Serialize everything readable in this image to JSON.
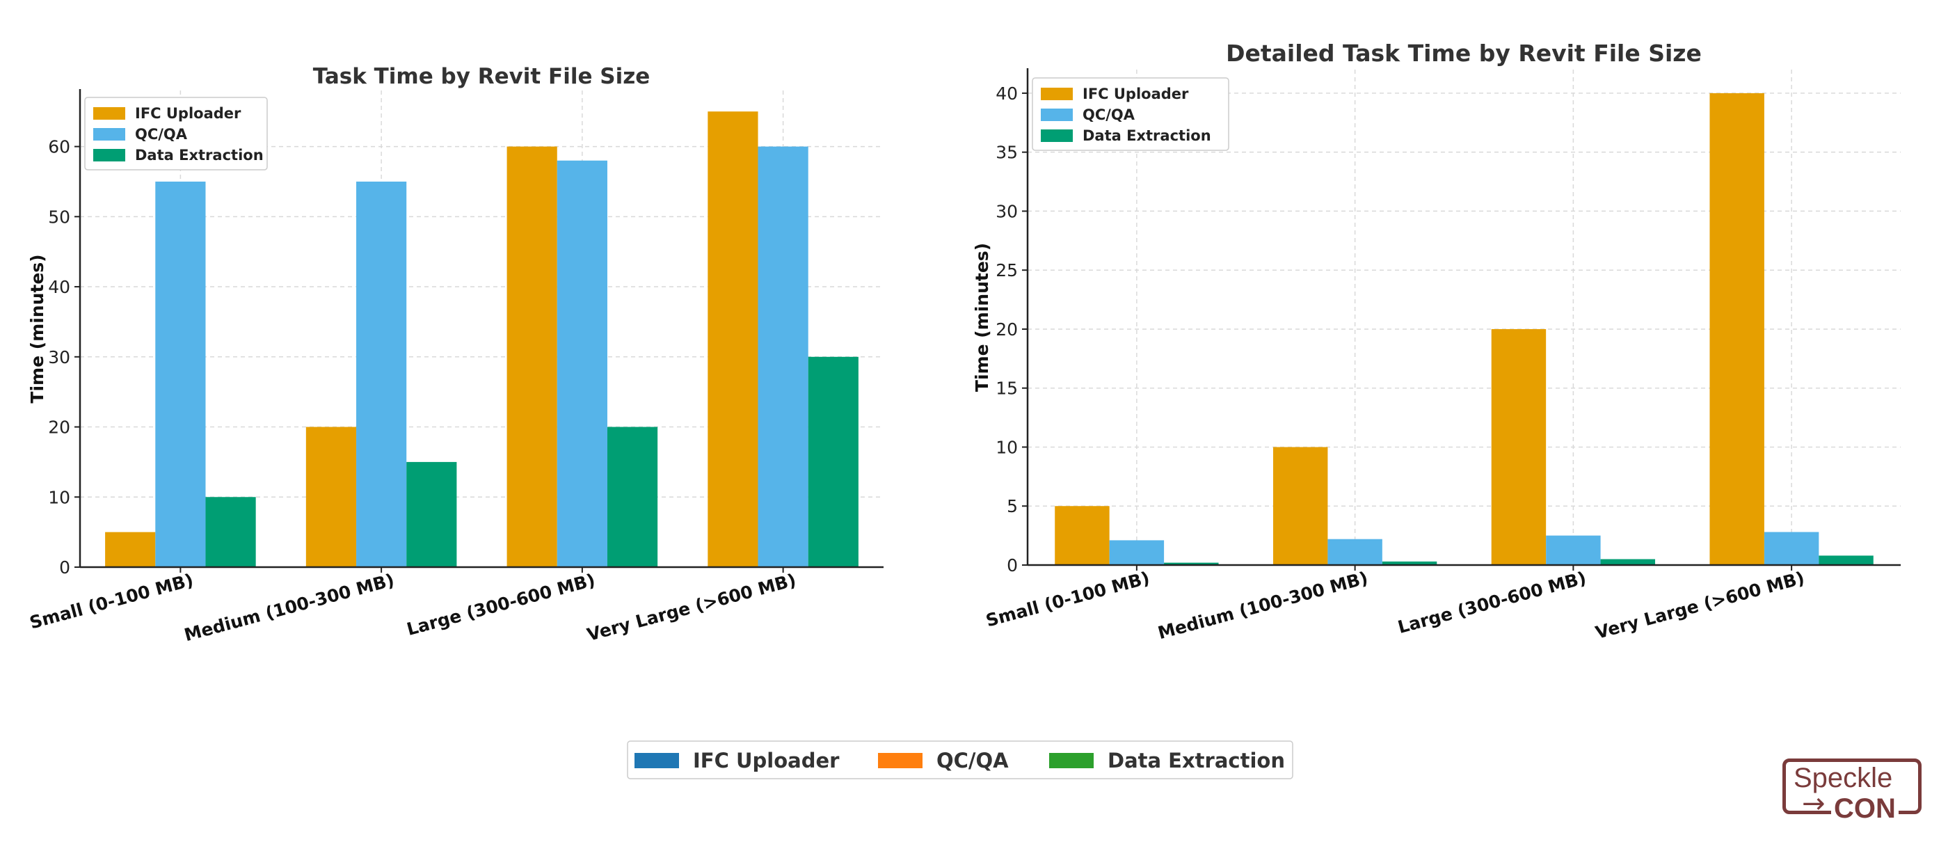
{
  "chart_data": [
    {
      "type": "bar",
      "title": "Task Time by Revit File Size",
      "xlabel": "",
      "ylabel": "Time (minutes)",
      "categories": [
        "Small (0-100 MB)",
        "Medium (100-300 MB)",
        "Large (300-600 MB)",
        "Very Large (>600 MB)"
      ],
      "series": [
        {
          "name": "IFC Uploader",
          "color": "#E69F00",
          "values": [
            5,
            20,
            60,
            65
          ]
        },
        {
          "name": "QC/QA",
          "color": "#56B4E9",
          "values": [
            55,
            55,
            58,
            60
          ]
        },
        {
          "name": "Data Extraction",
          "color": "#009E73",
          "values": [
            10,
            15,
            20,
            30
          ]
        }
      ],
      "ylim": [
        0,
        68
      ],
      "yticks": [
        0,
        10,
        20,
        30,
        40,
        50,
        60
      ],
      "grid": true,
      "legend": "top-left"
    },
    {
      "type": "bar",
      "title": "Detailed Task Time by Revit File Size",
      "xlabel": "",
      "ylabel": "Time (minutes)",
      "categories": [
        "Small (0-100 MB)",
        "Medium (100-300 MB)",
        "Large (300-600 MB)",
        "Very Large (>600 MB)"
      ],
      "series": [
        {
          "name": "IFC Uploader",
          "color": "#E69F00",
          "values": [
            5,
            10,
            20,
            40
          ]
        },
        {
          "name": "QC/QA",
          "color": "#56B4E9",
          "values": [
            2.1,
            2.2,
            2.5,
            2.8
          ]
        },
        {
          "name": "Data Extraction",
          "color": "#009E73",
          "values": [
            0.2,
            0.3,
            0.5,
            0.8
          ]
        }
      ],
      "ylim": [
        0,
        42
      ],
      "yticks": [
        0,
        5,
        10,
        15,
        20,
        25,
        30,
        35,
        40
      ],
      "grid": true,
      "legend": "top-left"
    }
  ],
  "bottom_legend": {
    "position": "bottom-center",
    "items": [
      {
        "name": "IFC Uploader",
        "color": "#1F77B4"
      },
      {
        "name": "QC/QA",
        "color": "#FF7F0E"
      },
      {
        "name": "Data Extraction",
        "color": "#2CA02C"
      }
    ]
  },
  "logo": {
    "line1": "Speckle",
    "line2": "CON",
    "arrow": "→",
    "color": "#7A3B3B"
  }
}
